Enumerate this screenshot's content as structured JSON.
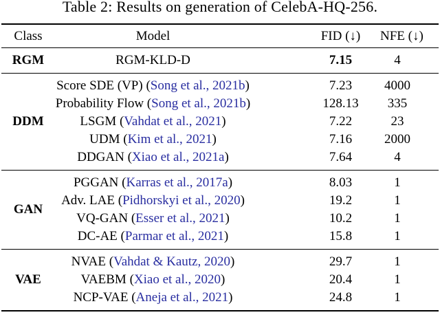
{
  "caption": "Table 2: Results on generation of CelebA-HQ-256.",
  "colors": {
    "citation_blue": "#282da0",
    "text": "#000000",
    "background": "#ffffff"
  },
  "format": {
    "open_paren": "(",
    "close_paren": ")"
  },
  "header": {
    "class": "Class",
    "model": "Model",
    "fid": "FID (↓)",
    "nfe": "NFE (↓)"
  },
  "sections": [
    {
      "class_label": "RGM",
      "rows": [
        {
          "model": "RGM-KLD-D",
          "cite": "",
          "fid": "7.15",
          "nfe": "4"
        }
      ]
    },
    {
      "class_label": "DDM",
      "rows": [
        {
          "model": "Score SDE (VP)",
          "cite": "Song et al., 2021b",
          "fid": "7.23",
          "nfe": "4000"
        },
        {
          "model": "Probability Flow",
          "cite": "Song et al., 2021b",
          "fid": "128.13",
          "nfe": "335"
        },
        {
          "model": "LSGM",
          "cite": "Vahdat et al., 2021",
          "fid": "7.22",
          "nfe": "23"
        },
        {
          "model": "UDM",
          "cite": "Kim et al., 2021",
          "fid": "7.16",
          "nfe": "2000"
        },
        {
          "model": "DDGAN",
          "cite": "Xiao et al., 2021a",
          "fid": "7.64",
          "nfe": "4"
        }
      ]
    },
    {
      "class_label": "GAN",
      "rows": [
        {
          "model": "PGGAN",
          "cite": "Karras et al., 2017a",
          "fid": "8.03",
          "nfe": "1"
        },
        {
          "model": "Adv. LAE",
          "cite": "Pidhorskyi et al., 2020",
          "fid": "19.2",
          "nfe": "1"
        },
        {
          "model": "VQ-GAN",
          "cite": "Esser et al., 2021",
          "fid": "10.2",
          "nfe": "1"
        },
        {
          "model": "DC-AE",
          "cite": "Parmar et al., 2021",
          "fid": "15.8",
          "nfe": "1"
        }
      ]
    },
    {
      "class_label": "VAE",
      "rows": [
        {
          "model": "NVAE",
          "cite": "Vahdat & Kautz, 2020",
          "fid": "29.7",
          "nfe": "1"
        },
        {
          "model": "VAEBM",
          "cite": "Xiao et al., 2020",
          "fid": "20.4",
          "nfe": "1"
        },
        {
          "model": "NCP-VAE",
          "cite": "Aneja et al., 2021",
          "fid": "24.8",
          "nfe": "1"
        }
      ]
    }
  ]
}
